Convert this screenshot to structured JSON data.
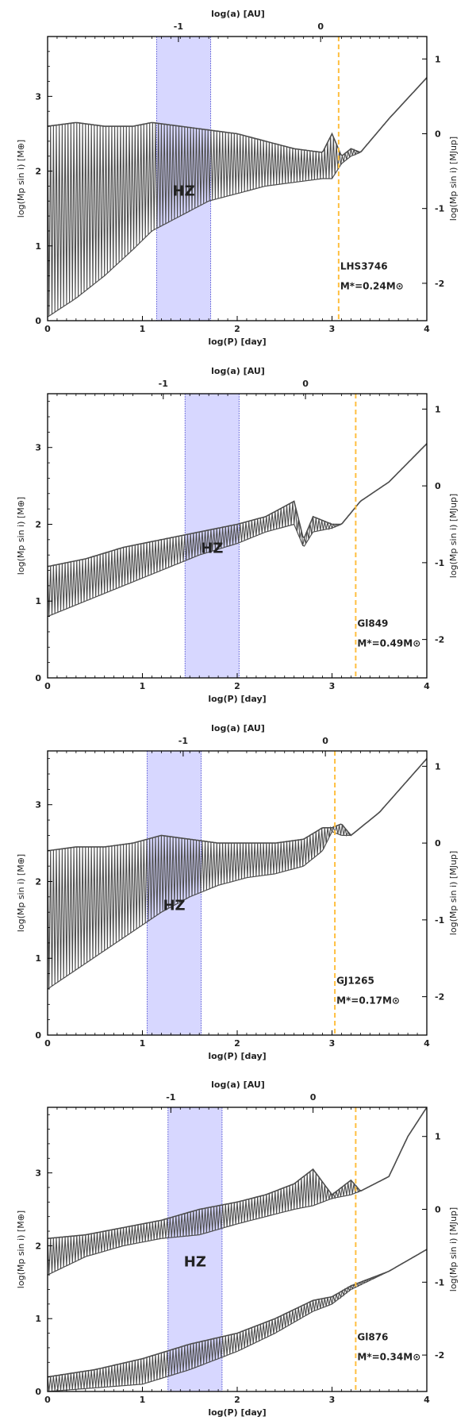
{
  "colors": {
    "line": "#4d4d4d",
    "hz_fill": "#c9c9ff",
    "hz_edge": "#7777dd",
    "hz_text": "#a8a8f0",
    "snow_line": "#ffbf40",
    "axis": "#000000",
    "background": "#ffffff"
  },
  "chart_data": [
    {
      "type": "line",
      "name": "LHS3746",
      "star_label": "LHS3746",
      "mass_label": "M*=0.24M⊙",
      "hz_label": "HZ",
      "xlabel": "log(P) [day]",
      "xlabel_top": "log(a) [AU]",
      "ylabel_left": "log(Mp sin i) [M⊕]",
      "ylabel_right": "log(Mp sin i) [MJup]",
      "xlim": [
        0,
        4
      ],
      "ylim": [
        0,
        3.8
      ],
      "xticks": [
        "0",
        "1",
        "2",
        "3",
        "4"
      ],
      "yticks_left": [
        "0",
        "1",
        "2",
        "3"
      ],
      "yticks_right": [
        "-2",
        "-1",
        "0",
        "1"
      ],
      "xticks_top": [
        "-1",
        "0"
      ],
      "top_tick_positions_logP": [
        1.38,
        2.88
      ],
      "right_tick_positions_logM": [
        0.5,
        1.5,
        2.5,
        3.5
      ],
      "hz_range_logP": [
        1.15,
        1.72
      ],
      "snow_line_logP": 3.07,
      "series": [
        {
          "name": "upper_envelope",
          "x": [
            0.0,
            0.3,
            0.6,
            0.9,
            1.1,
            1.4,
            1.7,
            2.0,
            2.3,
            2.6,
            2.9,
            3.0,
            3.1,
            3.2,
            3.3,
            3.6,
            4.0
          ],
          "values": [
            2.6,
            2.65,
            2.6,
            2.6,
            2.65,
            2.6,
            2.55,
            2.5,
            2.4,
            2.3,
            2.25,
            2.5,
            2.2,
            2.3,
            2.25,
            2.7,
            3.25
          ]
        },
        {
          "name": "lower_envelope",
          "x": [
            0.0,
            0.3,
            0.6,
            0.9,
            1.1,
            1.4,
            1.7,
            2.0,
            2.3,
            2.6,
            2.9,
            3.0,
            3.1,
            3.2,
            3.3,
            3.6,
            4.0
          ],
          "values": [
            0.05,
            0.3,
            0.6,
            0.95,
            1.2,
            1.4,
            1.6,
            1.7,
            1.8,
            1.85,
            1.9,
            1.9,
            2.1,
            2.2,
            2.25,
            2.7,
            3.25
          ]
        }
      ]
    },
    {
      "type": "line",
      "name": "Gl849",
      "star_label": "Gl849",
      "mass_label": "M*=0.49M⊙",
      "hz_label": "HZ",
      "xlabel": "log(P) [day]",
      "xlabel_top": "log(a) [AU]",
      "ylabel_left": "log(Mp sin i) [M⊕]",
      "ylabel_right": "log(Mp sin i) [MJup]",
      "xlim": [
        0,
        4
      ],
      "ylim": [
        0,
        3.7
      ],
      "xticks": [
        "0",
        "1",
        "2",
        "3",
        "4"
      ],
      "yticks_left": [
        "0",
        "1",
        "2",
        "3"
      ],
      "yticks_right": [
        "-2",
        "-1",
        "0",
        "1"
      ],
      "xticks_top": [
        "-1",
        "0"
      ],
      "top_tick_positions_logP": [
        1.22,
        2.72
      ],
      "right_tick_positions_logM": [
        0.5,
        1.5,
        2.5,
        3.5
      ],
      "hz_range_logP": [
        1.45,
        2.02
      ],
      "snow_line_logP": 3.25,
      "series": [
        {
          "name": "upper_envelope",
          "x": [
            0.0,
            0.4,
            0.8,
            1.2,
            1.6,
            2.0,
            2.3,
            2.6,
            2.7,
            2.8,
            3.0,
            3.1,
            3.3,
            3.6,
            4.0
          ],
          "values": [
            1.45,
            1.55,
            1.7,
            1.8,
            1.9,
            2.0,
            2.1,
            2.3,
            1.8,
            2.1,
            2.0,
            2.0,
            2.3,
            2.55,
            3.05
          ]
        },
        {
          "name": "lower_envelope",
          "x": [
            0.0,
            0.4,
            0.8,
            1.2,
            1.6,
            2.0,
            2.3,
            2.6,
            2.7,
            2.8,
            3.0,
            3.1,
            3.3,
            3.6,
            4.0
          ],
          "values": [
            0.8,
            1.0,
            1.2,
            1.4,
            1.6,
            1.75,
            1.9,
            2.0,
            1.7,
            1.9,
            1.95,
            2.0,
            2.3,
            2.55,
            3.05
          ]
        }
      ]
    },
    {
      "type": "line",
      "name": "GJ1265",
      "star_label": "GJ1265",
      "mass_label": "M*=0.17M⊙",
      "hz_label": "HZ",
      "xlabel": "log(P) [day]",
      "xlabel_top": "log(a) [AU]",
      "ylabel_left": "log(Mp sin i) [M⊕]",
      "ylabel_right": "log(Mp sin i) [MJup]",
      "xlim": [
        0,
        4
      ],
      "ylim": [
        0,
        3.7
      ],
      "xticks": [
        "0",
        "1",
        "2",
        "3",
        "4"
      ],
      "yticks_left": [
        "0",
        "1",
        "2",
        "3"
      ],
      "yticks_right": [
        "-2",
        "-1",
        "0",
        "1"
      ],
      "xticks_top": [
        "-1",
        "0"
      ],
      "top_tick_positions_logP": [
        1.43,
        2.93
      ],
      "right_tick_positions_logM": [
        0.5,
        1.5,
        2.5,
        3.5
      ],
      "hz_range_logP": [
        1.05,
        1.62
      ],
      "snow_line_logP": 3.03,
      "series": [
        {
          "name": "upper_envelope",
          "x": [
            0.0,
            0.3,
            0.6,
            0.9,
            1.2,
            1.5,
            1.8,
            2.1,
            2.4,
            2.7,
            2.9,
            3.0,
            3.1,
            3.2,
            3.5,
            4.0
          ],
          "values": [
            2.4,
            2.45,
            2.45,
            2.5,
            2.6,
            2.55,
            2.5,
            2.5,
            2.5,
            2.55,
            2.7,
            2.7,
            2.75,
            2.6,
            2.9,
            3.6
          ]
        },
        {
          "name": "lower_envelope",
          "x": [
            0.0,
            0.3,
            0.6,
            0.9,
            1.2,
            1.5,
            1.8,
            2.1,
            2.4,
            2.7,
            2.9,
            3.0,
            3.1,
            3.2,
            3.5,
            4.0
          ],
          "values": [
            0.6,
            0.85,
            1.1,
            1.35,
            1.6,
            1.8,
            1.95,
            2.05,
            2.1,
            2.2,
            2.4,
            2.65,
            2.6,
            2.6,
            2.9,
            3.6
          ]
        }
      ]
    },
    {
      "type": "line",
      "name": "Gl876",
      "star_label": "Gl876",
      "mass_label": "M*=0.34M⊙",
      "hz_label": "HZ",
      "xlabel": "log(P) [day]",
      "xlabel_top": "log(a) [AU]",
      "ylabel_left": "log(Mp sin i) [M⊕]",
      "ylabel_right": "log(Mp sin i) [MJup]",
      "xlim": [
        0,
        4
      ],
      "ylim": [
        0,
        3.9
      ],
      "xticks": [
        "0",
        "1",
        "2",
        "3",
        "4"
      ],
      "yticks_left": [
        "0",
        "1",
        "2",
        "3"
      ],
      "yticks_right": [
        "-2",
        "-1",
        "0",
        "1"
      ],
      "xticks_top": [
        "-1",
        "0"
      ],
      "top_tick_positions_logP": [
        1.3,
        2.8
      ],
      "right_tick_positions_logM": [
        0.5,
        1.5,
        2.5,
        3.5
      ],
      "hz_range_logP": [
        1.27,
        1.84
      ],
      "snow_line_logP": 3.25,
      "series": [
        {
          "name": "upper_envelope",
          "x": [
            0.0,
            0.4,
            0.8,
            1.2,
            1.6,
            2.0,
            2.3,
            2.6,
            2.8,
            3.0,
            3.2,
            3.3,
            3.6,
            3.8,
            4.0
          ],
          "values": [
            2.1,
            2.15,
            2.25,
            2.35,
            2.5,
            2.6,
            2.7,
            2.85,
            3.05,
            2.7,
            2.9,
            2.75,
            2.95,
            3.5,
            3.9
          ]
        },
        {
          "name": "lower_envelope",
          "x": [
            0.0,
            0.4,
            0.8,
            1.2,
            1.6,
            2.0,
            2.3,
            2.6,
            2.8,
            3.0,
            3.2,
            3.3,
            3.6,
            3.8,
            4.0
          ],
          "values": [
            1.6,
            1.85,
            2.0,
            2.1,
            2.15,
            2.3,
            2.4,
            2.5,
            2.55,
            2.65,
            2.7,
            2.75,
            2.95,
            3.5,
            3.9
          ]
        },
        {
          "name": "lower_curve_upper",
          "x": [
            0.0,
            0.5,
            1.0,
            1.5,
            2.0,
            2.4,
            2.8,
            3.0,
            3.2,
            3.6,
            4.0
          ],
          "values": [
            0.2,
            0.3,
            0.45,
            0.65,
            0.8,
            1.0,
            1.25,
            1.3,
            1.45,
            1.65,
            1.95
          ]
        },
        {
          "name": "lower_curve_lower",
          "x": [
            0.0,
            0.5,
            1.0,
            1.5,
            2.0,
            2.4,
            2.8,
            3.0,
            3.2,
            3.6,
            4.0
          ],
          "values": [
            0.0,
            0.05,
            0.1,
            0.3,
            0.55,
            0.8,
            1.1,
            1.2,
            1.4,
            1.65,
            1.95
          ]
        }
      ]
    }
  ]
}
